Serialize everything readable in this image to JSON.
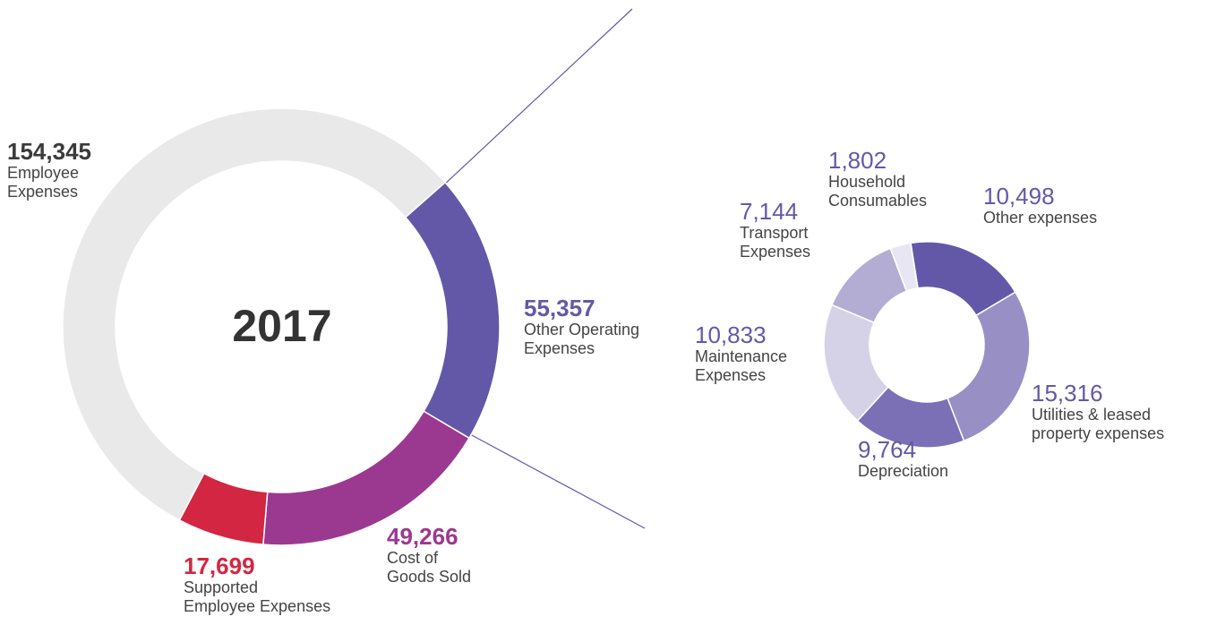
{
  "chart_data": [
    {
      "type": "donut",
      "center_label": "2017",
      "categories": [
        "Other Operating\nExpenses",
        "Cost of\nGoods Sold",
        "Supported\nEmployee Expenses",
        "Employee\nExpenses"
      ],
      "values": [
        55357,
        49266,
        17699,
        154345
      ],
      "value_labels": [
        "55,357",
        "49,266",
        "17,699",
        "154,345"
      ],
      "colors": [
        "#6358a8",
        "#9b3990",
        "#d32642",
        "#e8e9e8"
      ],
      "label_colors": [
        "#6358a8",
        "#9b3990",
        "#d32642",
        "#3a3a3a"
      ]
    },
    {
      "type": "donut",
      "categories": [
        "Other expenses",
        "Utilities & leased\nproperty expenses",
        "Depreciation",
        "Maintenance\nExpenses",
        "Transport\nExpenses",
        "Household\nConsumables"
      ],
      "values": [
        10498,
        15316,
        9764,
        10833,
        7144,
        1802
      ],
      "value_labels": [
        "10,498",
        "15,316",
        "9,764",
        "10,833",
        "7,144",
        "1,802"
      ],
      "colors": [
        "#6358a8",
        "#9890c4",
        "#7b6fb5",
        "#d5d2e8",
        "#b3add4",
        "#e8e6f2"
      ],
      "label_colors": [
        "#6358a8",
        "#6358a8",
        "#6358a8",
        "#6358a8",
        "#6358a8",
        "#6358a8"
      ]
    }
  ]
}
